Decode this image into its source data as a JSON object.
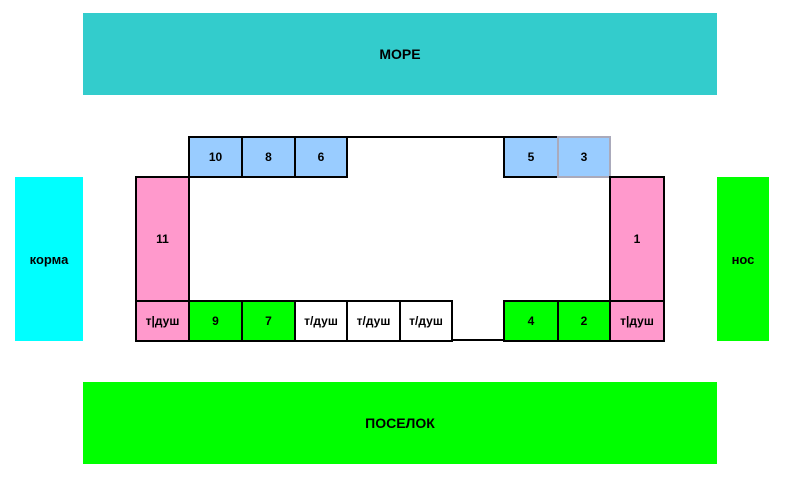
{
  "zones": {
    "sea": "МОРЕ",
    "stern": "корма",
    "bow": "нос",
    "village": "ПОСЕЛОК"
  },
  "top_cells": [
    "10",
    "8",
    "6",
    "5",
    "3"
  ],
  "side_cells": {
    "left": "11",
    "right": "1"
  },
  "bottom_cells": [
    "т|душ",
    "9",
    "7",
    "т/душ",
    "т/душ",
    "т/душ",
    "4",
    "2",
    "т|душ"
  ],
  "colors": {
    "sea": "#33cccc",
    "stern": "#00ffff",
    "bow": "#00ff00",
    "village": "#00ff00",
    "blue_room": "#99ccff",
    "pink_room": "#ff99cc",
    "green_room": "#00ff00"
  }
}
